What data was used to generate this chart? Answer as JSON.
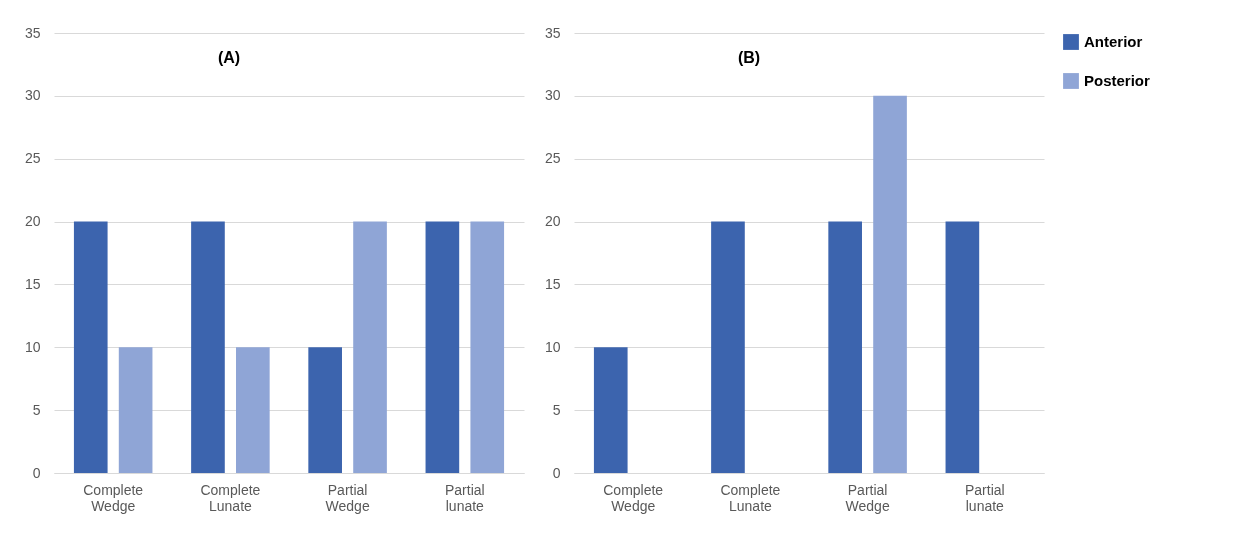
{
  "chart_data": [
    {
      "type": "bar",
      "title": "(A)",
      "categories": [
        "Complete Wedge",
        "Complete Lunate",
        "Partial Wedge",
        "Partial lunate"
      ],
      "series": [
        {
          "name": "Anterior",
          "color": "#3c64ae",
          "values": [
            20,
            20,
            10,
            20
          ]
        },
        {
          "name": "Posterior",
          "color": "#8fa5d6",
          "values": [
            10,
            10,
            20,
            20
          ]
        }
      ],
      "ylim": [
        0,
        35
      ],
      "yticks": [
        0,
        5,
        10,
        15,
        20,
        25,
        30,
        35
      ],
      "grid": "y",
      "legend": "right"
    },
    {
      "type": "bar",
      "title": "(B)",
      "categories": [
        "Complete Wedge",
        "Complete Lunate",
        "Partial Wedge",
        "Partial lunate"
      ],
      "series": [
        {
          "name": "Anterior",
          "color": "#3c64ae",
          "values": [
            10,
            20,
            20,
            20
          ]
        },
        {
          "name": "Posterior",
          "color": "#8fa5d6",
          "values": [
            0,
            0,
            30,
            0
          ]
        }
      ],
      "ylim": [
        0,
        35
      ],
      "yticks": [
        0,
        5,
        10,
        15,
        20,
        25,
        30,
        35
      ],
      "grid": "y",
      "legend": "right"
    }
  ]
}
